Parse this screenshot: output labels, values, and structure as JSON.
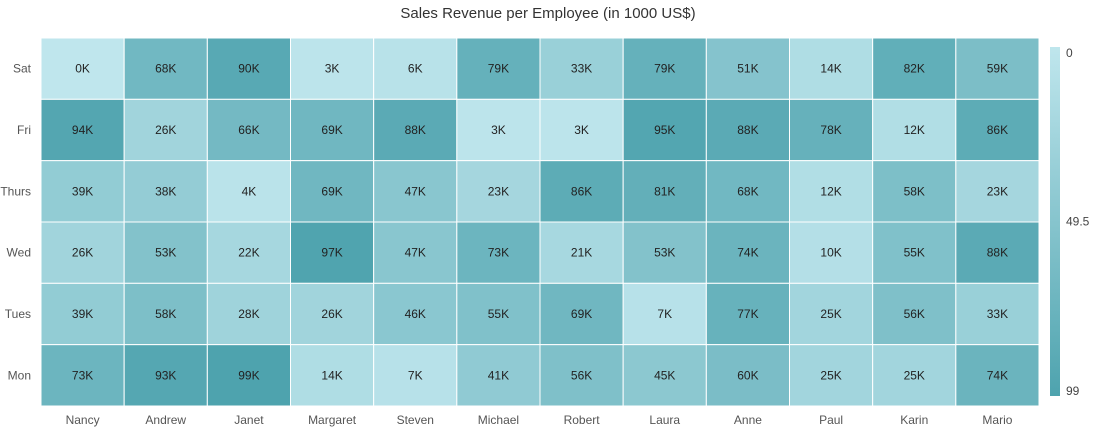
{
  "chart_data": {
    "type": "heatmap",
    "title": "Sales Revenue per Employee (in 1000 US$)",
    "x_categories": [
      "Nancy",
      "Andrew",
      "Janet",
      "Margaret",
      "Steven",
      "Michael",
      "Robert",
      "Laura",
      "Anne",
      "Paul",
      "Karin",
      "Mario"
    ],
    "y_categories": [
      "Sat",
      "Fri",
      "Thurs",
      "Wed",
      "Tues",
      "Mon"
    ],
    "values": [
      [
        0,
        68,
        90,
        3,
        6,
        79,
        33,
        79,
        51,
        14,
        82,
        59
      ],
      [
        94,
        26,
        66,
        69,
        88,
        3,
        3,
        95,
        88,
        78,
        12,
        86
      ],
      [
        39,
        38,
        4,
        69,
        47,
        23,
        86,
        81,
        68,
        12,
        58,
        23
      ],
      [
        26,
        53,
        22,
        97,
        47,
        73,
        21,
        53,
        74,
        10,
        55,
        88
      ],
      [
        39,
        58,
        28,
        26,
        46,
        55,
        69,
        7,
        77,
        25,
        56,
        33
      ],
      [
        73,
        93,
        99,
        14,
        7,
        41,
        56,
        45,
        60,
        25,
        25,
        74
      ]
    ],
    "value_suffix": "K",
    "legend": {
      "min": 0,
      "mid": 49.5,
      "max": 99,
      "min_label": "0",
      "mid_label": "49.5",
      "max_label": "99",
      "position": "right"
    },
    "colors": {
      "low": "#bfe6ed",
      "high": "#4ea3ae",
      "border": "#ffffff"
    }
  }
}
